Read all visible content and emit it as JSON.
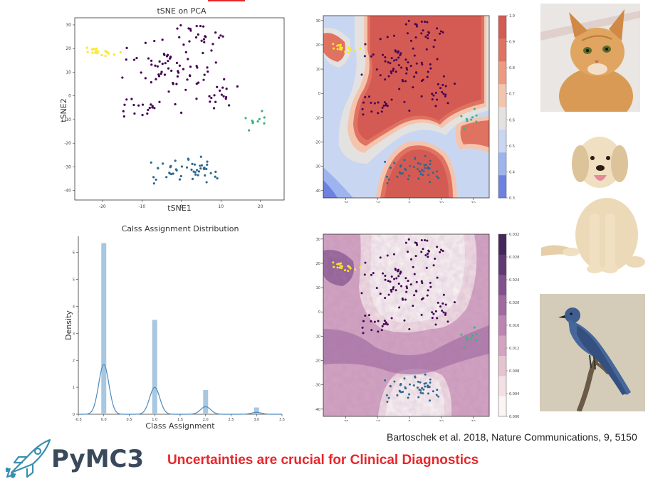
{
  "slide": {
    "citation": "Bartoschek et al. 2018, Nature Communications, 9, 5150",
    "tagline": "Uncertainties are crucial for Clinical Diagnostics",
    "logo_text": "PyMC3",
    "colors": {
      "tagline": "#e8262a",
      "logo_text": "#3a4a5c",
      "cluster_purple": "#440154",
      "cluster_blue": "#31688e",
      "cluster_green": "#35b779",
      "cluster_yellow": "#fde725"
    }
  },
  "images": [
    {
      "name": "cat-photo",
      "subject": "orange tabby cat"
    },
    {
      "name": "dog-photo",
      "subject": "labrador puppy sitting"
    },
    {
      "name": "bird-photo",
      "subject": "blue bird on branch"
    }
  ],
  "chart_data": [
    {
      "id": "tsne",
      "type": "scatter",
      "title": "tSNE on PCA",
      "xlabel": "tSNE1",
      "ylabel": "tSNE2",
      "xlim": [
        -27,
        26
      ],
      "ylim": [
        -44,
        33
      ],
      "xticks": [
        -20,
        -10,
        0,
        10,
        20
      ],
      "yticks": [
        30,
        20,
        10,
        0,
        -10,
        -20,
        -30,
        -40
      ],
      "grid": false,
      "clusters": [
        {
          "color": "#440154",
          "center": [
            -1,
            13
          ],
          "spread": [
            9,
            7
          ],
          "count": 60
        },
        {
          "color": "#440154",
          "center": [
            -8,
            -4
          ],
          "spread": [
            5,
            4
          ],
          "count": 20
        },
        {
          "color": "#440154",
          "center": [
            4,
            26
          ],
          "spread": [
            7,
            3
          ],
          "count": 22
        },
        {
          "color": "#440154",
          "center": [
            9,
            2
          ],
          "spread": [
            6,
            5
          ],
          "count": 22
        },
        {
          "color": "#31688e",
          "center": [
            2,
            -32
          ],
          "spread": [
            6,
            4
          ],
          "count": 50
        },
        {
          "color": "#35b779",
          "center": [
            19,
            -11
          ],
          "spread": [
            2,
            3
          ],
          "count": 10
        },
        {
          "color": "#fde725",
          "center": [
            -20,
            19
          ],
          "spread": [
            3,
            1.5
          ],
          "count": 18
        }
      ]
    },
    {
      "id": "confidence",
      "type": "heatmap",
      "xticks": [
        -20,
        -10,
        0,
        10,
        20
      ],
      "yticks": [
        30,
        20,
        10,
        0,
        -10,
        -20,
        -30,
        -40
      ],
      "colorbar_ticks": [
        "1.0",
        "0.9",
        "0.8",
        "0.7",
        "0.6",
        "0.5",
        "0.4",
        "0.3"
      ],
      "colormap": [
        "#6c81e0",
        "#9db4ee",
        "#c9d6f1",
        "#e3e2e1",
        "#f5c4ad",
        "#ee9a80",
        "#e07262",
        "#d45b53"
      ]
    },
    {
      "id": "density",
      "type": "bar",
      "title": "Calss Assignment Distribution",
      "xlabel": "Class Assignment",
      "ylabel": "Density",
      "xlim": [
        -0.5,
        3.5
      ],
      "ylim": [
        0,
        6.6
      ],
      "xticks": [
        "-0.5",
        "0.0",
        "0.5",
        "1.0",
        "1.5",
        "2.0",
        "2.5",
        "3.0",
        "3.5"
      ],
      "yticks": [
        "0",
        "1",
        "2",
        "3",
        "4",
        "5",
        "6"
      ],
      "categories": [
        0,
        1,
        2,
        3
      ],
      "values": [
        6.35,
        3.5,
        0.9,
        0.25
      ],
      "kde_peaks": [
        1.85,
        1.0,
        0.28,
        0.07
      ],
      "bar_color": "#a8c7e0",
      "line_color": "#4a8bbf"
    },
    {
      "id": "entropy",
      "type": "heatmap",
      "xticks": [
        -20,
        -10,
        0,
        10,
        20
      ],
      "yticks": [
        30,
        20,
        10,
        0,
        -10,
        -20,
        -30,
        -40
      ],
      "colorbar_ticks": [
        "0.032",
        "0.028",
        "0.024",
        "0.020",
        "0.016",
        "0.012",
        "0.008",
        "0.004",
        "0.000"
      ],
      "colormap": [
        "#fbf6f4",
        "#f3e0e4",
        "#e6c3d1",
        "#d3a3c1",
        "#bd84b1",
        "#a0699f",
        "#82508c",
        "#613a72",
        "#44285a"
      ]
    }
  ]
}
